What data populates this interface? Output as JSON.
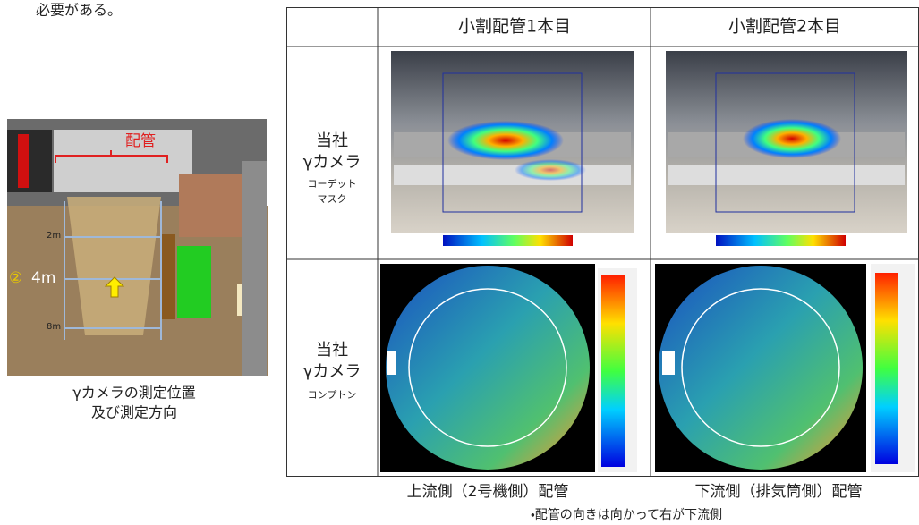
{
  "header": {
    "text": "必要がある。"
  },
  "left_panel": {
    "pipe_label": "配管",
    "marker_number": "②",
    "distance_labels": [
      "2m",
      "4m",
      "8m"
    ],
    "caption": [
      "γカメラの測定位置",
      "及び測定方向"
    ]
  },
  "table": {
    "columns": [
      "小割配管1本目",
      "小割配管2本目"
    ],
    "rows": [
      {
        "label": [
          "当社",
          "γカメラ",
          "コーデット",
          "マスク"
        ]
      },
      {
        "label": [
          "当社",
          "γカメラ",
          "コンプトン"
        ]
      }
    ]
  },
  "captions": [
    "上流側（2号機側）配管",
    "下流側（排気筒側）配管"
  ],
  "note": "・配管の向きは向かって右が下流側"
}
